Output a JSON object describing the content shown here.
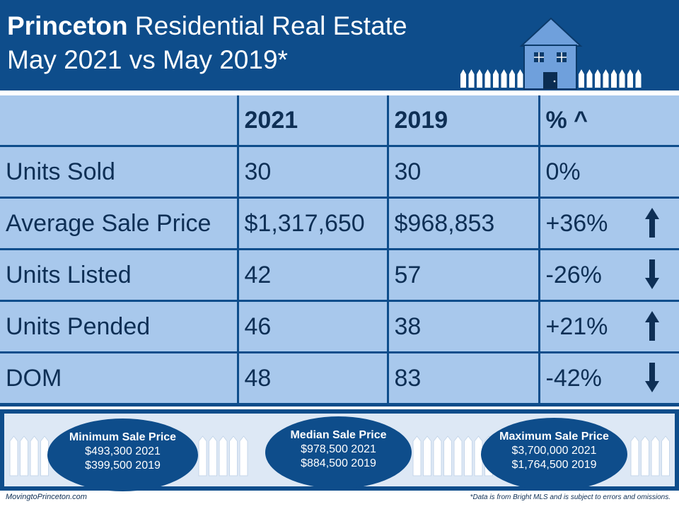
{
  "header": {
    "title_bold": "Princeton",
    "title_rest": " Residential Real Estate",
    "subtitle": "May 2021 vs May 2019*"
  },
  "colors": {
    "navy": "#0e4d8b",
    "cell_fill": "#a8c8ec",
    "text_dark": "#0e2f55",
    "house_fill": "#6fa0dc"
  },
  "icons": {
    "house": "house-icon",
    "fence": "picket-fence-icon",
    "up": "arrow-up-icon",
    "down": "arrow-down-icon"
  },
  "table": {
    "columns": [
      "",
      "2021",
      "2019",
      "% ^"
    ],
    "rows": [
      {
        "label": "Units Sold",
        "v2021": "30",
        "v2019": "30",
        "pct": "0%",
        "trend": "none"
      },
      {
        "label": "Average Sale Price",
        "v2021": "$1,317,650",
        "v2019": "$968,853",
        "pct": "+36%",
        "trend": "up"
      },
      {
        "label": "Units Listed",
        "v2021": "42",
        "v2019": "57",
        "pct": "-26%",
        "trend": "down"
      },
      {
        "label": "Units Pended",
        "v2021": "46",
        "v2019": "38",
        "pct": "+21%",
        "trend": "up"
      },
      {
        "label": "DOM",
        "v2021": "48",
        "v2019": "83",
        "pct": "-42%",
        "trend": "down"
      }
    ]
  },
  "summary": {
    "min": {
      "title": "Minimum Sale Price",
      "line1": "$493,300 2021",
      "line2": "$399,500 2019"
    },
    "median": {
      "title": "Median Sale Price",
      "line1": "$978,500 2021",
      "line2": "$884,500  2019"
    },
    "max": {
      "title": "Maximum Sale Price",
      "line1": "$3,700,000 2021",
      "line2": "$1,764,500  2019"
    }
  },
  "footer": {
    "website": "MovingtoPrinceton.com",
    "disclaimer": "*Data is from Bright MLS and is subject to errors and omissions."
  }
}
